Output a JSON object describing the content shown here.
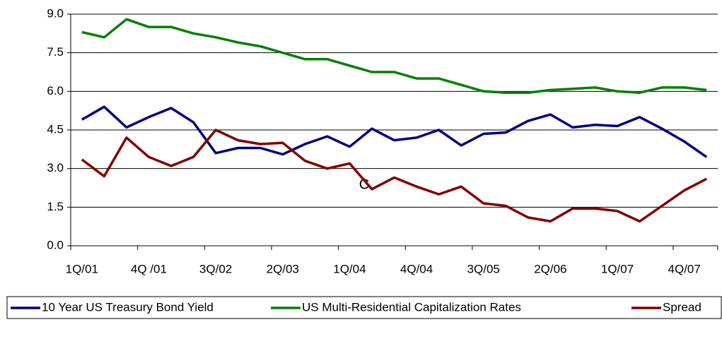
{
  "chart_data": {
    "type": "line",
    "categories": [
      "1Q/01",
      null,
      null,
      "4Q /01",
      null,
      null,
      "3Q/02",
      null,
      null,
      "2Q/03",
      null,
      null,
      "1Q/04",
      null,
      null,
      "4Q/04",
      null,
      null,
      "3Q/05",
      null,
      null,
      "2Q/06",
      null,
      null,
      "1Q/07",
      null,
      null,
      "4Q/07",
      null
    ],
    "series": [
      {
        "name": "10 Year US Treasury Bond Yield",
        "color": "#000080",
        "values": [
          4.9,
          5.4,
          4.6,
          5.0,
          5.35,
          4.8,
          3.6,
          3.8,
          3.8,
          3.55,
          3.95,
          4.25,
          3.85,
          4.55,
          4.1,
          4.2,
          4.5,
          3.9,
          4.35,
          4.4,
          4.85,
          5.1,
          4.6,
          4.7,
          4.65,
          5.0,
          4.55,
          4.05,
          3.45
        ]
      },
      {
        "name": "US Multi-Residential Capitalization Rates",
        "color": "#008000",
        "values": [
          8.3,
          8.1,
          8.8,
          8.5,
          8.5,
          8.25,
          8.1,
          7.9,
          7.75,
          7.5,
          7.25,
          7.25,
          7.0,
          6.75,
          6.75,
          6.5,
          6.5,
          6.25,
          6.0,
          5.95,
          5.95,
          6.05,
          6.1,
          6.15,
          6.0,
          5.95,
          6.15,
          6.15,
          6.05
        ]
      },
      {
        "name": "Spread",
        "color": "#800000",
        "values": [
          3.35,
          2.7,
          4.2,
          3.45,
          3.1,
          3.45,
          4.5,
          4.1,
          3.95,
          4.0,
          3.3,
          3.0,
          3.2,
          2.2,
          2.65,
          2.3,
          2.0,
          2.3,
          1.65,
          1.55,
          1.1,
          0.95,
          1.45,
          1.45,
          1.35,
          0.95,
          1.55,
          2.15,
          2.6
        ]
      }
    ],
    "annotation": "C",
    "ylim": [
      0,
      9
    ],
    "yticks": [
      {
        "value": 0,
        "label": "0.0"
      },
      {
        "value": 1.5,
        "label": "1.5"
      },
      {
        "value": 3,
        "label": "3.0"
      },
      {
        "value": 4.5,
        "label": "4.5"
      },
      {
        "value": 6,
        "label": "6.0"
      },
      {
        "value": 7.5,
        "label": "7.5"
      },
      {
        "value": 9,
        "label": "9.0"
      }
    ],
    "grid": true,
    "legend": "bottom"
  }
}
